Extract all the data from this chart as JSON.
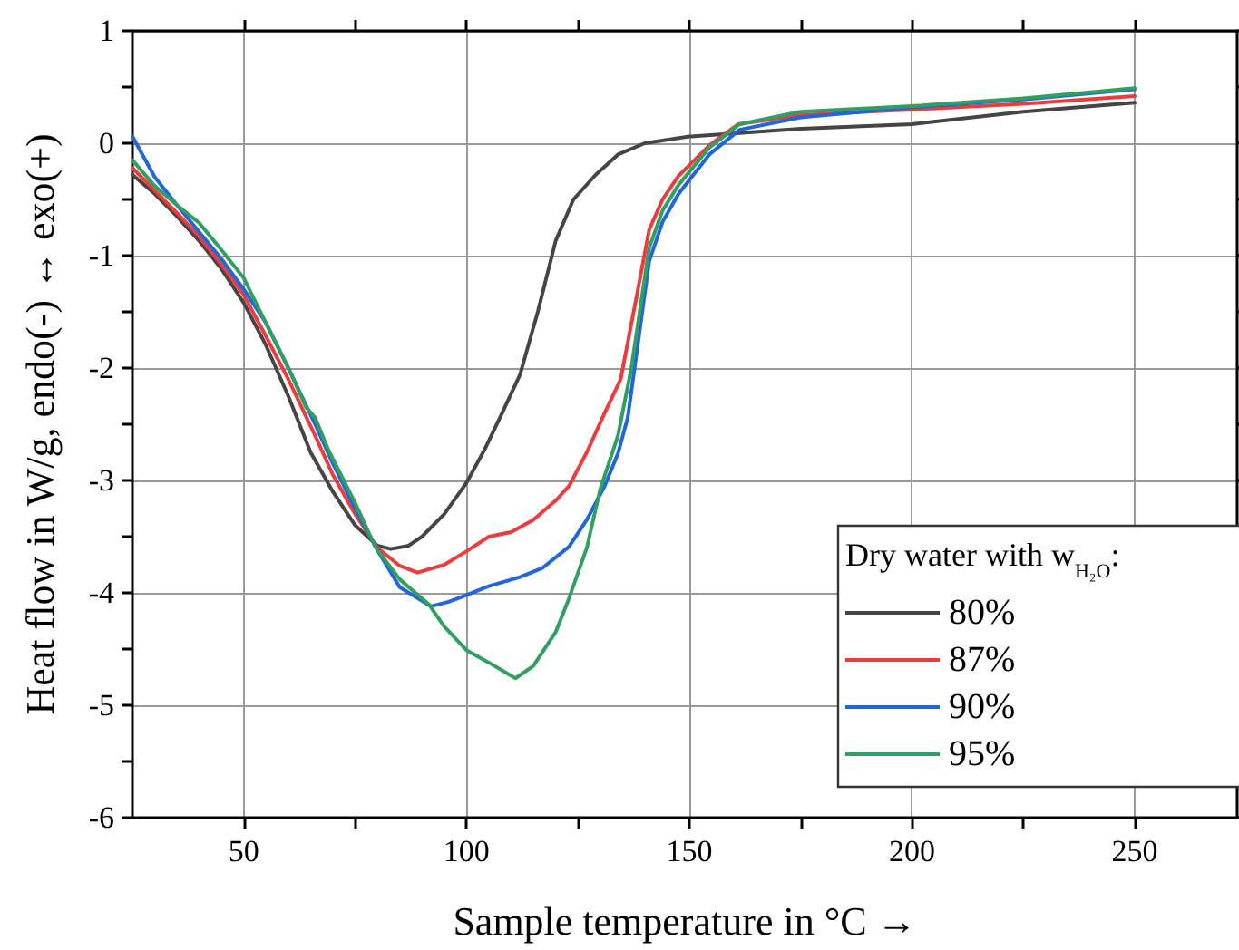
{
  "chart_data": {
    "type": "line",
    "xlabel": "Sample temperature in °C →",
    "ylabel": "Heat flow in W/g, endo(-) ↔ exo(+)",
    "legend_title": "Dry water with w$_{H₂O}$:",
    "xlim": [
      25,
      273
    ],
    "xticks": [
      50,
      {
        "value": 75,
        "label": null
      },
      100,
      {
        "value": 125,
        "label": null
      },
      150,
      {
        "value": 175,
        "label": null
      },
      200,
      {
        "value": 225,
        "label": null
      },
      250
    ],
    "ylim": [
      -6,
      1
    ],
    "yticks": [
      -6,
      {
        "value": -5.5,
        "label": null
      },
      -5,
      {
        "value": -4.5,
        "label": null
      },
      -4,
      {
        "value": -3.5,
        "label": null
      },
      -3,
      {
        "value": -2.5,
        "label": null
      },
      -2,
      {
        "value": -1.5,
        "label": null
      },
      -1,
      {
        "value": -0.5,
        "label": null
      },
      0,
      {
        "value": 0.5,
        "label": null
      },
      1
    ],
    "grid": true,
    "legend": "bottom right",
    "line_style": "solid",
    "marker": "none",
    "series": [
      {
        "name": "80%",
        "color": "#454545",
        "x": [
          25,
          30,
          35,
          40,
          45,
          50,
          55,
          60,
          65,
          70,
          75,
          80,
          83,
          87,
          90,
          95,
          100,
          104,
          108,
          112,
          116,
          120,
          124,
          129,
          134,
          140,
          150,
          175,
          200,
          225,
          250
        ],
        "values": [
          -0.28,
          -0.45,
          -0.65,
          -0.87,
          -1.12,
          -1.42,
          -1.8,
          -2.25,
          -2.75,
          -3.1,
          -3.4,
          -3.58,
          -3.61,
          -3.58,
          -3.5,
          -3.3,
          -3.02,
          -2.73,
          -2.4,
          -2.06,
          -1.5,
          -0.87,
          -0.5,
          -0.28,
          -0.1,
          0.0,
          0.06,
          0.13,
          0.17,
          0.28,
          0.36
        ]
      },
      {
        "name": "87%",
        "color": "#ee3b3b",
        "x": [
          25,
          30,
          35,
          40,
          45,
          50,
          55,
          60,
          66,
          70,
          75,
          80,
          85,
          89,
          95,
          100,
          105,
          110,
          115,
          120,
          123,
          127,
          131,
          134.6,
          138,
          141,
          144,
          147.6,
          154.5,
          161,
          175,
          200,
          225,
          250
        ],
        "values": [
          -0.22,
          -0.42,
          -0.62,
          -0.83,
          -1.08,
          -1.35,
          -1.72,
          -2.1,
          -2.6,
          -2.95,
          -3.3,
          -3.6,
          -3.76,
          -3.82,
          -3.75,
          -3.63,
          -3.5,
          -3.46,
          -3.35,
          -3.18,
          -3.05,
          -2.75,
          -2.4,
          -2.1,
          -1.4,
          -0.77,
          -0.5,
          -0.29,
          -0.02,
          0.17,
          0.25,
          0.3,
          0.35,
          0.42
        ]
      },
      {
        "name": "90%",
        "color": "#2266dd",
        "x": [
          25,
          30,
          35,
          40,
          45,
          50,
          55,
          60,
          66,
          70,
          75,
          80,
          85,
          92,
          96,
          100,
          105,
          112,
          117,
          123,
          127,
          131,
          134,
          136.2,
          141,
          144,
          147.6,
          154.5,
          161.3,
          175,
          200,
          225,
          250
        ],
        "values": [
          0.06,
          -0.3,
          -0.55,
          -0.79,
          -1.03,
          -1.3,
          -1.6,
          -2.0,
          -2.5,
          -2.85,
          -3.25,
          -3.62,
          -3.95,
          -4.12,
          -4.08,
          -4.02,
          -3.94,
          -3.86,
          -3.78,
          -3.59,
          -3.35,
          -3.05,
          -2.76,
          -2.44,
          -1.05,
          -0.7,
          -0.45,
          -0.1,
          0.12,
          0.23,
          0.32,
          0.39,
          0.48
        ]
      },
      {
        "name": "95%",
        "color": "#30a060",
        "x": [
          25,
          30,
          35,
          40,
          45,
          50,
          56.7,
          60,
          64,
          66,
          69,
          75,
          79.5,
          85,
          91.5,
          95,
          100,
          105,
          111,
          115,
          120,
          123,
          127,
          130,
          134,
          137,
          141,
          144,
          147.6,
          154.5,
          161.3,
          175,
          200,
          225,
          250
        ],
        "values": [
          -0.15,
          -0.38,
          -0.55,
          -0.71,
          -0.95,
          -1.2,
          -1.74,
          -2.0,
          -2.35,
          -2.44,
          -2.73,
          -3.2,
          -3.59,
          -3.88,
          -4.1,
          -4.3,
          -4.51,
          -4.62,
          -4.76,
          -4.65,
          -4.35,
          -4.05,
          -3.6,
          -3.08,
          -2.6,
          -2.0,
          -0.93,
          -0.6,
          -0.37,
          -0.04,
          0.17,
          0.28,
          0.33,
          0.4,
          0.49
        ]
      }
    ]
  }
}
